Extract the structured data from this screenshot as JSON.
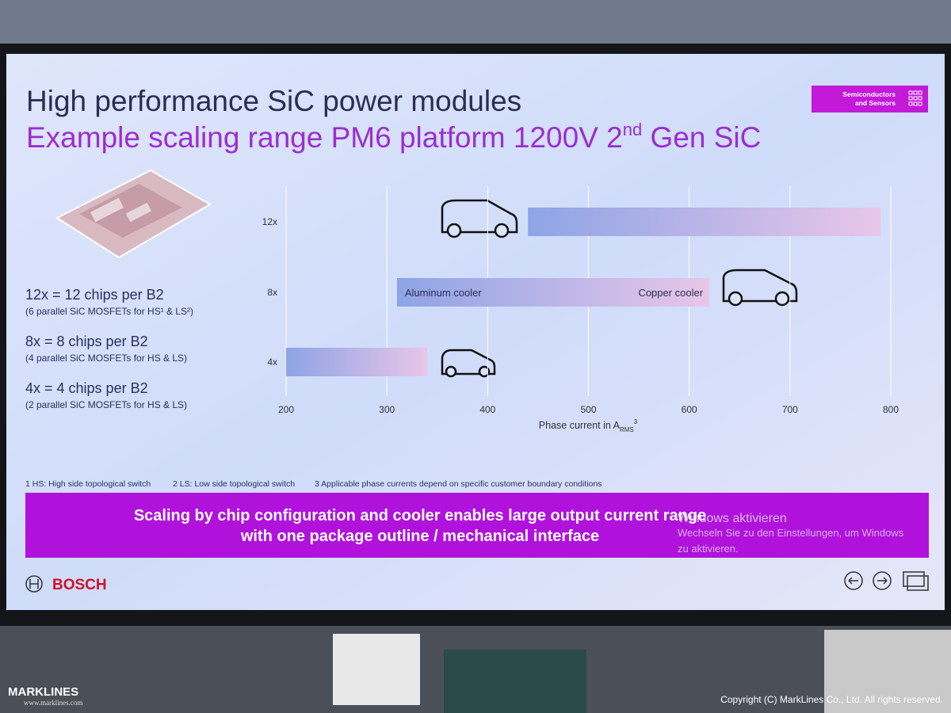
{
  "slide": {
    "title": "High performance SiC power modules",
    "subtitle": {
      "text": "Example scaling range PM6 platform 1200V 2",
      "sup": "nd",
      "tail": " Gen SiC"
    },
    "badge": [
      "Semiconductors",
      "and Sensors"
    ],
    "configs": [
      {
        "label": "12x = 12 chips per B2",
        "detail": "(6 parallel SiC MOSFETs for HS¹ & LS²)"
      },
      {
        "label": "8x = 8 chips per B2",
        "detail": "(4 parallel SiC MOSFETs for HS & LS)"
      },
      {
        "label": "4x = 4 chips per B2",
        "detail": "(2 parallel SiC MOSFETs for HS & LS)"
      }
    ],
    "footnotes": [
      "1 HS: High side topological switch",
      "2 LS: Low side topological switch",
      "3 Applicable phase currents depend on specific customer boundary conditions"
    ],
    "banner": [
      "Scaling by chip configuration and cooler enables large output current range",
      "with one package outline / mechanical interface"
    ],
    "brand": "BOSCH",
    "watermark": [
      "Windows aktivieren",
      "Wechseln Sie zu den Einstellungen, um Windows",
      "zu aktivieren."
    ]
  },
  "photo": {
    "logo": "MARKLINES",
    "url": "www.marklines.com",
    "copyright": "Copyright (C) MarkLines Co., Ltd. All rights reserved."
  },
  "chart_data": {
    "type": "range_bar",
    "categories": [
      "12x",
      "8x",
      "4x"
    ],
    "values": [
      [
        440,
        790
      ],
      [
        310,
        620
      ],
      [
        200,
        340
      ]
    ],
    "bar_labels": [
      [
        null,
        null
      ],
      [
        "Aluminum cooler",
        "Copper cooler"
      ],
      [
        null,
        null
      ]
    ],
    "bar_gradient": [
      "#8ea4e6",
      "#e8c6e8"
    ],
    "xlabel": {
      "text": "Phase current in A",
      "sub": "RMS",
      "sup": "3"
    },
    "xlim": [
      200,
      800
    ],
    "xticks": [
      200,
      300,
      400,
      500,
      600,
      700,
      800
    ],
    "grid": true
  }
}
